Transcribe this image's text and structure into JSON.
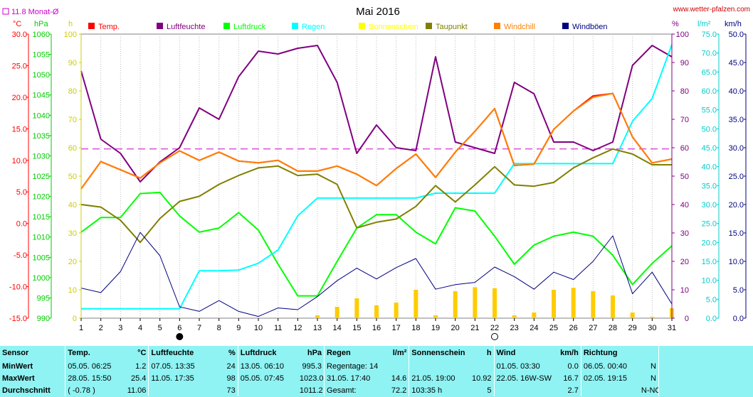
{
  "header": {
    "month_avg_label": "11.8 Monat-Ø",
    "month_avg_color": "#cc00cc",
    "title": "Mai 2016",
    "website": "www.wetter-pfalzen.com",
    "left_units": [
      "°C",
      "hPa",
      "h"
    ],
    "right_units": [
      "%",
      "l/m²",
      "km/h"
    ]
  },
  "legend": [
    {
      "label": "Temp.",
      "color": "#ff0000"
    },
    {
      "label": "Luftfeuchte",
      "color": "#800080"
    },
    {
      "label": "Luftdruck",
      "color": "#00ff00"
    },
    {
      "label": "Regen",
      "color": "#00ffff"
    },
    {
      "label": "Sonnenschein",
      "color": "#ffff00"
    },
    {
      "label": "Taupunkt",
      "color": "#808000"
    },
    {
      "label": "Windchill",
      "color": "#ff8000"
    },
    {
      "label": "Windböen",
      "color": "#000080"
    }
  ],
  "chart_data": {
    "type": "line",
    "x": [
      1,
      2,
      3,
      4,
      5,
      6,
      7,
      8,
      9,
      10,
      11,
      12,
      13,
      14,
      15,
      16,
      17,
      18,
      19,
      20,
      21,
      22,
      23,
      24,
      25,
      26,
      27,
      28,
      29,
      30,
      31
    ],
    "axes": {
      "temp": {
        "label": "°C",
        "range": [
          -15,
          30
        ],
        "ticks": [
          "30.0",
          "25.0",
          "20.0",
          "15.0",
          "10.0",
          "5.0",
          "0.0",
          "-5.0",
          "-10.0",
          "-15.0"
        ],
        "color": "#ff0000"
      },
      "pressure": {
        "label": "hPa",
        "range": [
          990,
          1060
        ],
        "ticks": [
          "1060",
          "1055",
          "1050",
          "1045",
          "1040",
          "1035",
          "1030",
          "1025",
          "1020",
          "1015",
          "1010",
          "1005",
          "1000",
          "995",
          "990"
        ],
        "color": "#00cc00"
      },
      "sun_hours": {
        "label": "h",
        "range": [
          0,
          100
        ],
        "ticks": [
          "100",
          "90",
          "80",
          "70",
          "60",
          "50",
          "40",
          "30",
          "20",
          "10",
          "0"
        ],
        "color": "#cccc00"
      },
      "humidity": {
        "label": "%",
        "range": [
          0,
          100
        ],
        "ticks": [
          "100",
          "90",
          "80",
          "70",
          "60",
          "50",
          "40",
          "30",
          "20",
          "10",
          "0"
        ],
        "color": "#800080"
      },
      "rain": {
        "label": "l/m²",
        "range": [
          0,
          75
        ],
        "ticks": [
          "75.0",
          "70.0",
          "65.0",
          "60.0",
          "55.0",
          "50.0",
          "45.0",
          "40.0",
          "35.0",
          "30.0",
          "25.0",
          "20.0",
          "15.0",
          "10.0",
          "5.0",
          "0.0"
        ],
        "color": "#00cccc"
      },
      "wind": {
        "label": "km/h",
        "range": [
          0,
          50
        ],
        "ticks": [
          "50.0",
          "45.0",
          "40.0",
          "35.0",
          "30.0",
          "25.0",
          "20.0",
          "15.0",
          "10.0",
          "5.0",
          "0.0"
        ],
        "color": "#000080"
      }
    },
    "reference_line": {
      "axis": "temp",
      "value": 11.8,
      "color": "#cc00cc"
    },
    "series": [
      {
        "name": "Temp.",
        "axis": "temp",
        "color": "#ff0000",
        "values": [
          5.5,
          9.8,
          8.5,
          7.2,
          9.6,
          11.5,
          10.0,
          11.3,
          9.9,
          9.6,
          10.0,
          8.3,
          8.3,
          9.1,
          7.8,
          6.0,
          8.7,
          11.0,
          7.3,
          11.3,
          14.6,
          18.2,
          9.2,
          9.4,
          14.9,
          17.8,
          20.2,
          20.6,
          13.7,
          9.6,
          10.2
        ]
      },
      {
        "name": "Luftfeuchte",
        "axis": "humidity",
        "color": "#800080",
        "values": [
          87,
          63,
          58,
          48,
          55,
          60,
          74,
          70,
          85,
          94,
          93,
          95,
          96,
          83,
          58,
          68,
          60,
          59,
          92,
          62,
          60,
          58,
          83,
          79,
          62,
          62,
          59,
          62,
          89,
          96,
          92
        ]
      },
      {
        "name": "Luftdruck",
        "axis": "pressure",
        "color": "#00ff00",
        "values": [
          1011.2,
          1014.8,
          1014.8,
          1020.7,
          1021.0,
          1015.2,
          1011.2,
          1012.2,
          1016.0,
          1011.7,
          1003.3,
          995.5,
          995.5,
          1004.0,
          1012.2,
          1015.5,
          1015.5,
          1011.2,
          1008.3,
          1017.2,
          1016.4,
          1010.2,
          1003.3,
          1008.0,
          1010.2,
          1011.2,
          1010.2,
          1005.5,
          998.3,
          1003.5,
          1007.8
        ]
      },
      {
        "name": "Regen",
        "axis": "rain",
        "color": "#00ffff",
        "values": [
          2.5,
          2.5,
          2.5,
          2.5,
          2.5,
          2.5,
          12.5,
          12.5,
          12.7,
          14.5,
          18.0,
          27.0,
          31.7,
          31.7,
          31.7,
          31.7,
          31.7,
          31.7,
          33.0,
          33.0,
          33.0,
          33.0,
          40.8,
          40.8,
          40.8,
          40.8,
          40.8,
          40.8,
          52.0,
          58.0,
          72.2
        ]
      },
      {
        "name": "Sonnenschein",
        "axis": "sun_hours",
        "type": "bar",
        "color": "#ffcc00",
        "values": [
          0,
          0,
          0,
          0,
          0,
          0,
          0,
          0,
          0,
          0,
          0,
          0,
          1.0,
          4.0,
          7.0,
          4.5,
          5.5,
          10.0,
          1.0,
          9.5,
          10.9,
          10.5,
          1.0,
          2.0,
          10.0,
          10.7,
          9.5,
          8.0,
          2.0,
          0.5,
          3.5
        ]
      },
      {
        "name": "Taupunkt",
        "axis": "temp",
        "color": "#808000",
        "values": [
          3.0,
          2.6,
          0.5,
          -3.0,
          0.8,
          3.5,
          4.3,
          6.2,
          7.6,
          8.8,
          9.1,
          7.6,
          7.8,
          6.2,
          -0.7,
          0.2,
          0.7,
          2.7,
          6.0,
          3.4,
          6.1,
          9.0,
          6.1,
          5.9,
          6.5,
          8.8,
          10.4,
          11.8,
          11.0,
          9.3,
          9.3
        ]
      },
      {
        "name": "Windchill",
        "axis": "temp",
        "color": "#ff8000",
        "values": [
          5.5,
          9.8,
          8.5,
          7.2,
          9.6,
          11.5,
          10.0,
          11.3,
          9.9,
          9.6,
          10.0,
          8.3,
          8.3,
          9.1,
          7.8,
          6.0,
          8.7,
          11.0,
          7.3,
          11.3,
          14.6,
          18.2,
          9.2,
          9.4,
          14.9,
          17.8,
          20.0,
          20.6,
          13.7,
          9.6,
          10.2
        ]
      },
      {
        "name": "Windböen",
        "axis": "wind",
        "color": "#000080",
        "values": [
          5.3,
          4.5,
          8.2,
          15.1,
          11.0,
          2.0,
          1.2,
          3.1,
          1.2,
          0.3,
          1.8,
          1.5,
          3.8,
          6.6,
          8.8,
          6.9,
          8.9,
          10.5,
          5.1,
          5.9,
          6.3,
          9.0,
          7.3,
          5.1,
          8.1,
          6.8,
          10.0,
          14.5,
          4.3,
          8.1,
          2.5
        ]
      }
    ],
    "moon_markers": [
      {
        "day": 6,
        "phase": "new-moon"
      },
      {
        "day": 22,
        "phase": "full-moon"
      }
    ],
    "grid": "vertical-dotted",
    "legend_position": "top"
  },
  "stats": {
    "headers": {
      "sensor": "Sensor",
      "temp": "Temp.",
      "temp_unit": "°C",
      "hum": "Luftfeuchte",
      "hum_unit": "%",
      "press": "Luftdruck",
      "press_unit": "hPa",
      "rain": "Regen",
      "rain_unit": "l/m²",
      "sun": "Sonnenschein",
      "sun_unit": "h",
      "wind": "Wind",
      "wind_unit": "km/h",
      "dir": "Richtung"
    },
    "rows": [
      {
        "label": "MinWert",
        "temp_time": "05.05.  06:25",
        "temp_val": "1.2",
        "hum_time": "07.05.  13:35",
        "hum_val": "24",
        "press_time": "13.05.  06:10",
        "press_val": "995.3",
        "rain_time": "Regentage: 14",
        "rain_val": "",
        "sun_time": "",
        "sun_val": "",
        "wind_time": "01.05.  03:30",
        "wind_val": "0.0",
        "dir_time": "06.05.  00:40",
        "dir_val": "N"
      },
      {
        "label": "MaxWert",
        "temp_time": "28.05.  15:50",
        "temp_val": "25.4",
        "hum_time": "11.05.  17:35",
        "hum_val": "98",
        "press_time": "05.05.  07:45",
        "press_val": "1023.0",
        "rain_time": "31.05.  17:40",
        "rain_val": "14.6",
        "sun_time": "21.05.  19:00",
        "sun_val": "10.92",
        "wind_time": "22.05.  16W-SW",
        "wind_val": "16.7",
        "dir_time": "02.05.  19:15",
        "dir_val": "N"
      },
      {
        "label": "Durchschnitt",
        "temp_time": "( -0.78 )",
        "temp_val": "11.06",
        "hum_time": "",
        "hum_val": "73",
        "press_time": "",
        "press_val": "1011.2",
        "rain_time": "Gesamt:",
        "rain_val": "72.2",
        "sun_time": "103:35 h",
        "sun_val": "5",
        "wind_time": "",
        "wind_val": "2.7",
        "dir_time": "",
        "dir_val": "N-NO"
      }
    ]
  }
}
